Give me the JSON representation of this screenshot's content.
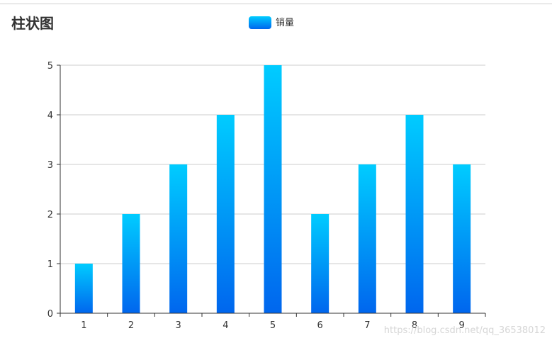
{
  "chart_data": {
    "type": "bar",
    "title": "柱状图",
    "legend": [
      "销量"
    ],
    "legend_position": "top-center",
    "categories": [
      "1",
      "2",
      "3",
      "4",
      "5",
      "6",
      "7",
      "8",
      "9"
    ],
    "series": [
      {
        "name": "销量",
        "values": [
          1,
          2,
          3,
          4,
          5,
          2,
          3,
          4,
          3
        ]
      }
    ],
    "y_ticks": [
      "0",
      "1",
      "2",
      "3",
      "4",
      "5"
    ],
    "ylim": [
      0,
      5
    ],
    "grid": true,
    "gradient": {
      "top": "#00ccff",
      "bottom": "#0066ee"
    },
    "axis_color": "#333333",
    "grid_color": "#cccccc"
  },
  "watermark": "https://blog.csdn.net/qq_36538012"
}
